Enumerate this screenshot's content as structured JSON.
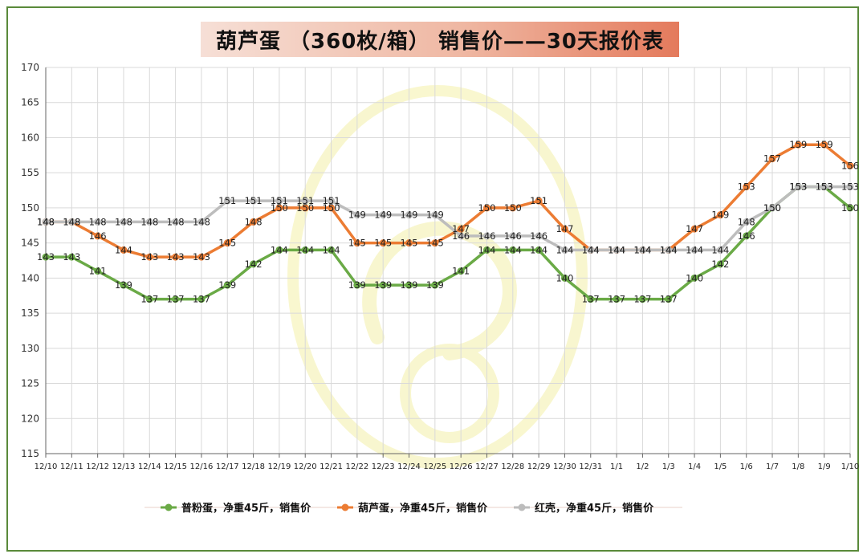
{
  "title": "葫芦蛋 （360枚/箱） 销售价——30天报价表",
  "chart_data": {
    "type": "line",
    "title": "葫芦蛋 （360枚/箱） 销售价——30天报价表",
    "categories": [
      "12/10",
      "12/11",
      "12/12",
      "12/13",
      "12/14",
      "12/15",
      "12/16",
      "12/17",
      "12/18",
      "12/19",
      "12/20",
      "12/21",
      "12/22",
      "12/23",
      "12/24",
      "12/25",
      "12/26",
      "12/27",
      "12/28",
      "12/29",
      "12/30",
      "12/31",
      "1/1",
      "1/2",
      "1/3",
      "1/4",
      "1/5",
      "1/6",
      "1/7",
      "1/8",
      "1/9",
      "1/10"
    ],
    "ylim": [
      115,
      170
    ],
    "yticks": [
      115,
      120,
      125,
      130,
      135,
      140,
      145,
      150,
      155,
      160,
      165,
      170
    ],
    "grid": true,
    "legend_position": "bottom",
    "series": [
      {
        "name": "普粉蛋，净重45斤，销售价",
        "color": "#6aaa46",
        "values": [
          143,
          143,
          141,
          139,
          137,
          137,
          137,
          139,
          142,
          144,
          144,
          144,
          139,
          139,
          139,
          139,
          141,
          144,
          144,
          144,
          140,
          137,
          137,
          137,
          137,
          140,
          142,
          146,
          150,
          153,
          153,
          150
        ]
      },
      {
        "name": "葫芦蛋，净重45斤，销售价",
        "color": "#ec7c33",
        "values": [
          148,
          148,
          146,
          144,
          143,
          143,
          143,
          145,
          148,
          150,
          150,
          150,
          145,
          145,
          145,
          145,
          147,
          150,
          150,
          151,
          147,
          144,
          144,
          144,
          144,
          147,
          149,
          153,
          157,
          159,
          159,
          156
        ]
      },
      {
        "name": "红壳，净重45斤，销售价",
        "color": "#bdbdbd",
        "values": [
          148,
          148,
          148,
          148,
          148,
          148,
          148,
          151,
          151,
          151,
          151,
          151,
          149,
          149,
          149,
          149,
          146,
          146,
          146,
          146,
          144,
          144,
          144,
          144,
          144,
          144,
          144,
          148,
          150,
          153,
          153,
          153
        ]
      }
    ]
  }
}
